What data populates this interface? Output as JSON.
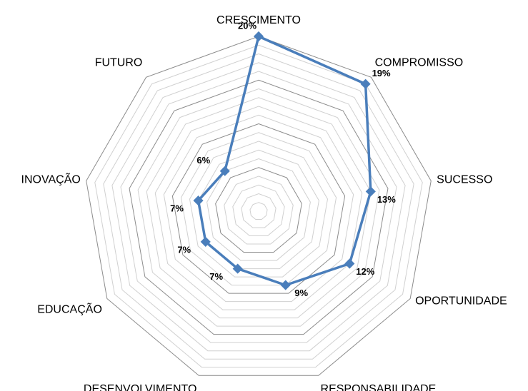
{
  "chart_data": {
    "type": "radar",
    "categories": [
      "CRESCIMENTO",
      "COMPROMISSO",
      "SUCESSO",
      "OPORTUNIDADE",
      "RESPONSABILIDADE",
      "DESENVOLVIMENTO",
      "EDUCAÇÃO",
      "INOVAÇÃO",
      "FUTURO"
    ],
    "values": [
      20,
      19,
      13,
      12,
      9,
      7,
      7,
      7,
      6
    ],
    "value_labels": [
      "20%",
      "19%",
      "13%",
      "12%",
      "9%",
      "7%",
      "7%",
      "7%",
      "6%"
    ],
    "color": "#4a7ebb",
    "ylim": [
      0,
      20
    ],
    "yticks": [
      0,
      1,
      2,
      3,
      4,
      5,
      6,
      7,
      8,
      9,
      10,
      11,
      12,
      13,
      14,
      15,
      16,
      17,
      18,
      19,
      20
    ],
    "grid": true
  }
}
